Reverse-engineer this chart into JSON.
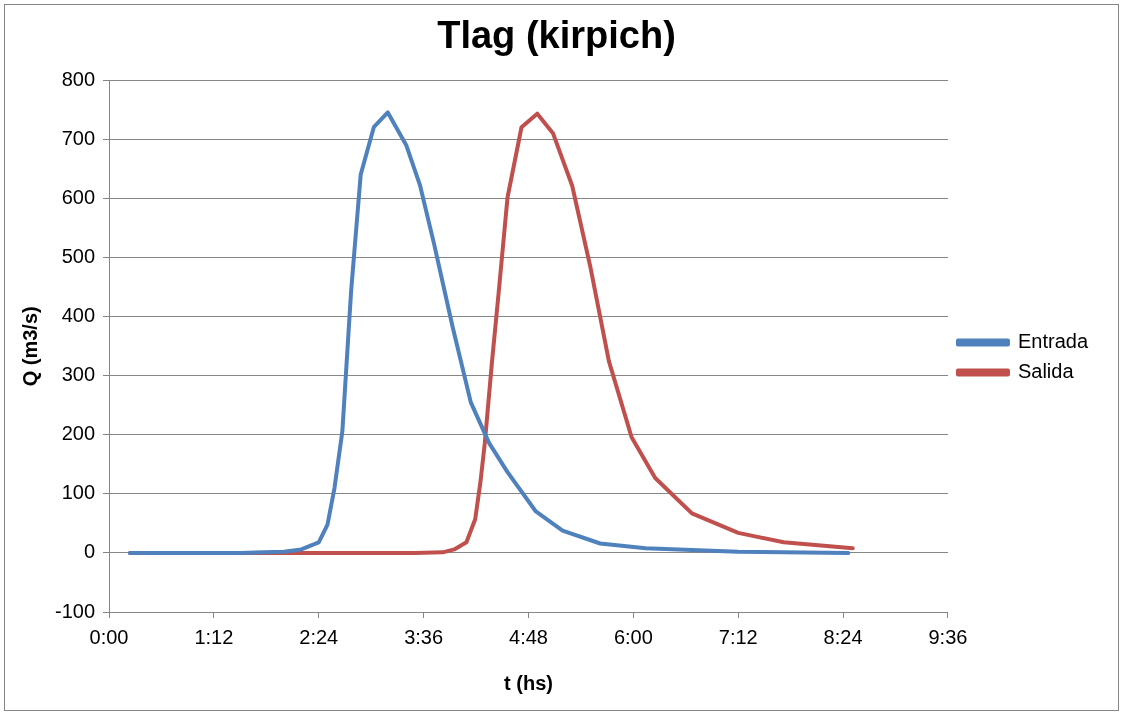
{
  "chart_data": {
    "type": "line",
    "title": "Tlag (kirpich)",
    "xlabel": "t (hs)",
    "ylabel": "Q (m3/s)",
    "xlim": [
      0,
      9.6
    ],
    "xticks": [
      {
        "value": 0,
        "label": "0:00"
      },
      {
        "value": 1.2,
        "label": "1:12"
      },
      {
        "value": 2.4,
        "label": "2:24"
      },
      {
        "value": 3.6,
        "label": "3:36"
      },
      {
        "value": 4.8,
        "label": "4:48"
      },
      {
        "value": 6,
        "label": "6:00"
      },
      {
        "value": 7.2,
        "label": "7:12"
      },
      {
        "value": 8.4,
        "label": "8:24"
      },
      {
        "value": 9.6,
        "label": "9:36"
      }
    ],
    "ylim": [
      -100,
      800
    ],
    "yticks": [
      -100,
      0,
      100,
      200,
      300,
      400,
      500,
      600,
      700,
      800
    ],
    "grid": "y",
    "legend": "right",
    "marker": "none",
    "line_style": "solid",
    "series": [
      {
        "name": "Entrada",
        "color": "#4f81bd",
        "x": [
          0.24,
          1.5,
          2.0,
          2.2,
          2.4,
          2.5,
          2.58,
          2.67,
          2.77,
          2.88,
          3.03,
          3.19,
          3.4,
          3.56,
          3.72,
          3.93,
          4.14,
          4.35,
          4.56,
          4.88,
          5.19,
          5.62,
          6.14,
          7.2,
          8.46
        ],
        "values": [
          0,
          0,
          2,
          6,
          18,
          48,
          110,
          206,
          443,
          641,
          721,
          746,
          691,
          622,
          523,
          384,
          255,
          186,
          137,
          71,
          38,
          16,
          8,
          2,
          0
        ]
      },
      {
        "name": "Salida",
        "color": "#c0504d",
        "x": [
          0.24,
          2.0,
          3.5,
          3.82,
          3.95,
          4.09,
          4.19,
          4.25,
          4.3,
          4.38,
          4.46,
          4.56,
          4.72,
          4.9,
          5.08,
          5.3,
          5.51,
          5.72,
          5.98,
          6.25,
          6.67,
          7.2,
          7.72,
          8.51
        ],
        "values": [
          0,
          0,
          0,
          1,
          6,
          18,
          57,
          120,
          186,
          320,
          443,
          602,
          721,
          744,
          711,
          622,
          483,
          325,
          196,
          127,
          67,
          34,
          18,
          8
        ]
      }
    ]
  }
}
